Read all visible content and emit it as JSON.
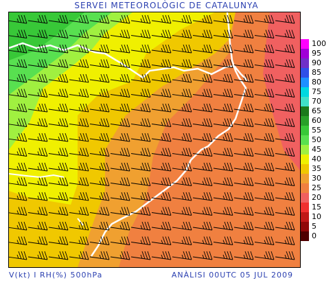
{
  "header": {
    "title": "SERVEI METEOROLÒGIC DE CATALUNYA"
  },
  "footer": {
    "left": "V(kt) I RH(%) 500hPa",
    "right": "ANÀLISI 00UTC 05 JUL 2009"
  },
  "legend": {
    "items": [
      {
        "label": "100",
        "color": "#ff00ff"
      },
      {
        "label": "95",
        "color": "#a000d8"
      },
      {
        "label": "90",
        "color": "#7030c8"
      },
      {
        "label": "85",
        "color": "#3050e8"
      },
      {
        "label": "80",
        "color": "#1e90ff"
      },
      {
        "label": "75",
        "color": "#00d8e0"
      },
      {
        "label": "70",
        "color": "#40e0c8"
      },
      {
        "label": "65",
        "color": "#1a7a1a"
      },
      {
        "label": "60",
        "color": "#28a028"
      },
      {
        "label": "55",
        "color": "#38c838"
      },
      {
        "label": "50",
        "color": "#58e050"
      },
      {
        "label": "45",
        "color": "#a0f040"
      },
      {
        "label": "40",
        "color": "#f0f000"
      },
      {
        "label": "35",
        "color": "#f0c800"
      },
      {
        "label": "30",
        "color": "#f0a030"
      },
      {
        "label": "25",
        "color": "#f08040"
      },
      {
        "label": "20",
        "color": "#f06060"
      },
      {
        "label": "15",
        "color": "#f03030"
      },
      {
        "label": "10",
        "color": "#c01818"
      },
      {
        "label": "5",
        "color": "#900808"
      },
      {
        "label": "0",
        "color": "#500000"
      }
    ]
  }
}
